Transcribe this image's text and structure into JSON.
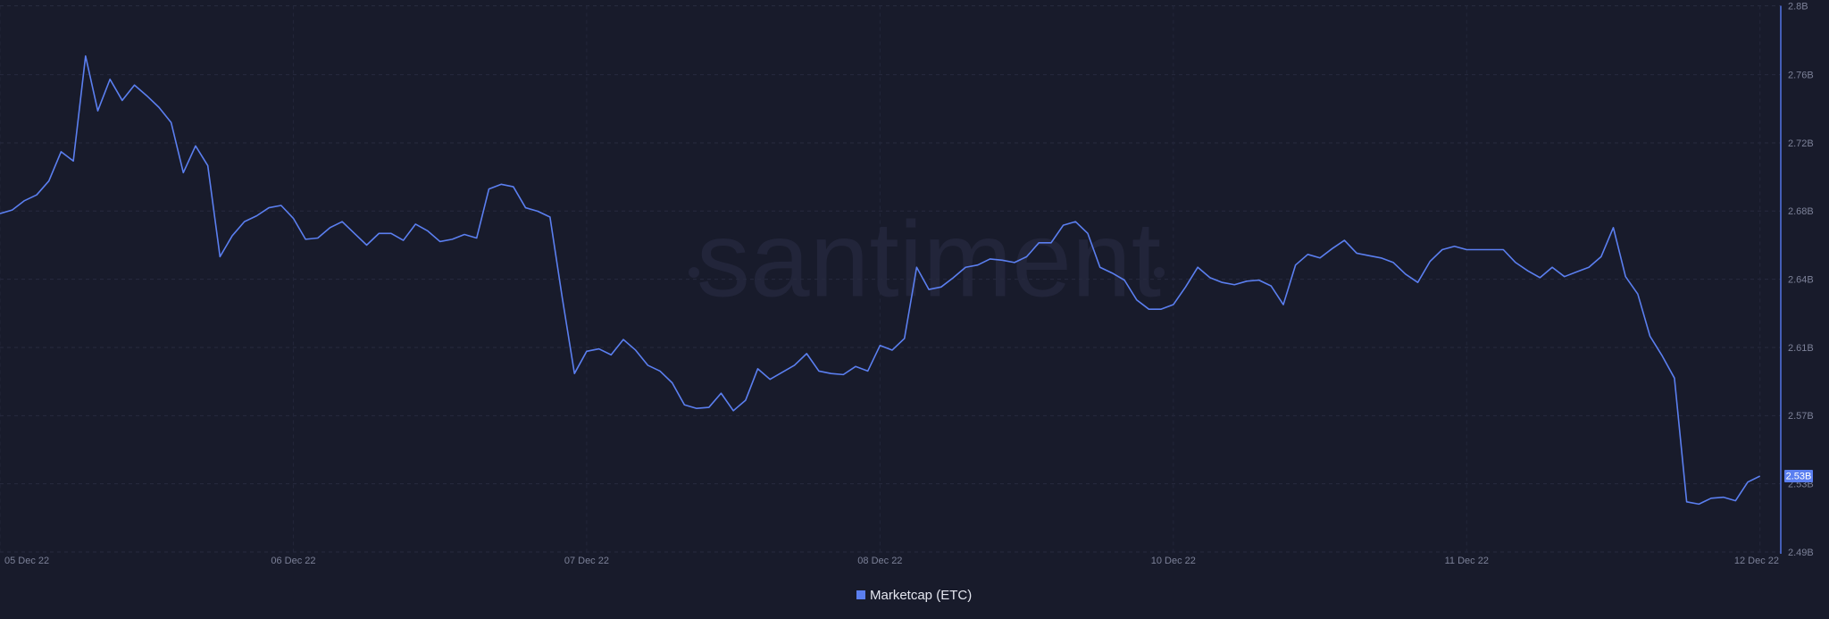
{
  "chart_data": {
    "type": "line",
    "watermark": "santiment",
    "x": [
      0,
      1,
      2,
      3,
      4,
      5,
      6,
      7,
      8,
      9,
      10,
      11,
      12,
      13,
      14,
      15,
      16,
      17,
      18,
      19,
      20,
      21,
      22,
      23,
      24,
      25,
      26,
      27,
      28,
      29,
      30,
      31,
      32,
      33,
      34,
      35,
      36,
      37,
      38,
      39,
      40,
      41,
      42,
      43,
      44,
      45,
      46,
      47,
      48,
      49,
      50,
      51,
      52,
      53,
      54,
      55,
      56,
      57,
      58,
      59,
      60,
      61,
      62,
      63,
      64,
      65,
      66,
      67,
      68,
      69,
      70,
      71,
      72,
      73,
      74,
      75,
      76,
      77,
      78,
      79,
      80,
      81,
      82,
      83,
      84,
      85,
      86,
      87,
      88,
      89,
      90,
      91,
      92,
      93,
      94,
      95,
      96,
      97,
      98,
      99,
      100,
      101,
      102,
      103,
      104,
      105,
      106,
      107,
      108,
      109,
      110,
      111,
      112,
      113,
      114,
      115,
      116,
      117,
      118,
      119,
      120,
      121,
      122,
      123,
      124,
      125,
      126,
      127,
      128,
      129,
      130,
      131,
      132,
      133,
      134,
      135,
      136,
      137,
      138,
      139,
      140,
      141,
      142,
      143,
      144
    ],
    "series": [
      {
        "name": "Marketcap (ETC)",
        "color": "#5b7ff0",
        "current_label": "2.53B",
        "values": [
          2.6821,
          2.6841,
          2.6894,
          2.6927,
          2.7006,
          2.7172,
          2.7119,
          2.7715,
          2.7404,
          2.7583,
          2.7463,
          2.755,
          2.749,
          2.7424,
          2.7338,
          2.7053,
          2.7205,
          2.7093,
          2.6576,
          2.6695,
          2.6775,
          2.6808,
          2.6854,
          2.6867,
          2.6794,
          2.6675,
          2.6682,
          2.6741,
          2.6775,
          2.6708,
          2.6642,
          2.6708,
          2.6708,
          2.6669,
          2.6761,
          2.6722,
          2.6662,
          2.6675,
          2.6702,
          2.6682,
          2.696,
          2.6987,
          2.6973,
          2.6854,
          2.6834,
          2.6801,
          2.6344,
          2.5913,
          2.6039,
          2.6053,
          2.6019,
          2.6106,
          2.6046,
          2.596,
          2.5927,
          2.586,
          2.5735,
          2.5715,
          2.5721,
          2.5801,
          2.5702,
          2.5761,
          2.594,
          2.588,
          2.592,
          2.596,
          2.6026,
          2.5927,
          2.5913,
          2.5907,
          2.5953,
          2.5927,
          2.6072,
          2.6046,
          2.6112,
          2.6516,
          2.639,
          2.6404,
          2.6457,
          2.6516,
          2.6529,
          2.6563,
          2.6556,
          2.6543,
          2.6576,
          2.6655,
          2.6655,
          2.6755,
          2.6775,
          2.6708,
          2.6516,
          2.6483,
          2.6443,
          2.6331,
          2.6278,
          2.6278,
          2.6304,
          2.6404,
          2.6516,
          2.6457,
          2.643,
          2.6417,
          2.6437,
          2.6443,
          2.641,
          2.6304,
          2.6529,
          2.6589,
          2.6569,
          2.6622,
          2.6669,
          2.6596,
          2.6582,
          2.6569,
          2.6543,
          2.6477,
          2.643,
          2.6549,
          2.6616,
          2.6635,
          2.6616,
          2.6616,
          2.6616,
          2.6616,
          2.6543,
          2.6496,
          2.6457,
          2.6516,
          2.6463,
          2.649,
          2.6516,
          2.6576,
          2.6741,
          2.6463,
          2.6364,
          2.6125,
          2.6013,
          2.5887,
          2.5185,
          2.5172,
          2.5205,
          2.5211,
          2.5191,
          2.5297,
          2.5331
        ]
      }
    ],
    "xlim": [
      0,
      145.7
    ],
    "xticks": [
      {
        "value": 0,
        "label": "05 Dec 22"
      },
      {
        "value": 24,
        "label": "06 Dec 22"
      },
      {
        "value": 48,
        "label": "07 Dec 22"
      },
      {
        "value": 72,
        "label": "08 Dec 22"
      },
      {
        "value": 96,
        "label": "10 Dec 22"
      },
      {
        "value": 120,
        "label": "11 Dec 22"
      },
      {
        "value": 144,
        "label": "12 Dec 22"
      }
    ],
    "ylim": [
      2.49,
      2.8
    ],
    "yticks": [
      {
        "value": 2.49,
        "label": "2.49B"
      },
      {
        "value": 2.5287,
        "label": "2.53B"
      },
      {
        "value": 2.5674,
        "label": "2.57B"
      },
      {
        "value": 2.6061,
        "label": "2.61B"
      },
      {
        "value": 2.6448,
        "label": "2.64B"
      },
      {
        "value": 2.6835,
        "label": "2.68B"
      },
      {
        "value": 2.7222,
        "label": "2.72B"
      },
      {
        "value": 2.7609,
        "label": "2.76B"
      },
      {
        "value": 2.8,
        "label": "2.8B"
      }
    ],
    "grid": true,
    "legend": "bottom"
  }
}
